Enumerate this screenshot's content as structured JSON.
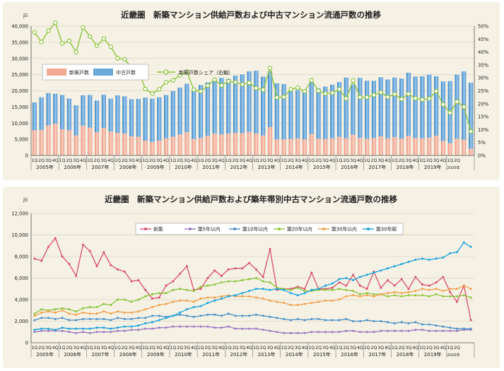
{
  "chart_data": [
    {
      "type": "bar",
      "title": "近畿圏　新築マンション供給戸数および中古マンション流通戸数の推移",
      "y_unit": "戸",
      "ylim": [
        0,
        40000
      ],
      "yticks": [
        "0",
        "5,000",
        "10,000",
        "15,000",
        "20,000",
        "25,000",
        "30,000",
        "35,000",
        "40,000"
      ],
      "y2lim": [
        0,
        50
      ],
      "y2ticks": [
        "0%",
        "5%",
        "10%",
        "15%",
        "20%",
        "25%",
        "30%",
        "35%",
        "40%",
        "45%",
        "50%"
      ],
      "quarter_labels": [
        "1Q",
        "2Q",
        "3Q",
        "4Q"
      ],
      "last_quarter_labels": [
        "1Q",
        "2Q"
      ],
      "years": [
        "2005年",
        "2006年",
        "2007年",
        "2008年",
        "2009年",
        "2010年",
        "2011年",
        "2012年",
        "2013年",
        "2014年",
        "2015年",
        "2016年",
        "2017年",
        "2018年",
        "2019年",
        "2020年"
      ],
      "legend": {
        "new": "新築戸数",
        "used": "中古戸数",
        "share": "新築戸数シェア（右軸）"
      },
      "legend_placement": "middle-left",
      "series": [
        {
          "name": "新築戸数",
          "values": [
            7800,
            7900,
            9300,
            9800,
            8100,
            7800,
            6200,
            9200,
            8600,
            7200,
            8500,
            7400,
            7000,
            6800,
            5900,
            5800,
            4600,
            4200,
            4600,
            5300,
            5800,
            6500,
            7200,
            5100,
            5400,
            6100,
            6800,
            6500,
            6800,
            7000,
            6900,
            7300,
            6800,
            6200,
            8800,
            5000,
            5000,
            5100,
            5300,
            5000,
            6600,
            5200,
            5100,
            5300,
            5800,
            5300,
            6400,
            5400,
            5200,
            5400,
            5900,
            5300,
            5700,
            5200,
            6100,
            5400,
            5300,
            5500,
            6100,
            4500,
            3800,
            5200,
            4900,
            2100
          ]
        },
        {
          "name": "中古戸数",
          "values": [
            8600,
            10100,
            10000,
            9300,
            10600,
            9800,
            9300,
            9400,
            10100,
            9800,
            10300,
            10200,
            11600,
            11500,
            11500,
            11700,
            13300,
            13400,
            13400,
            13400,
            14100,
            14500,
            15000,
            15000,
            16400,
            16500,
            16400,
            17500,
            16900,
            17700,
            18200,
            18700,
            19400,
            18200,
            17200,
            17300,
            17100,
            14800,
            14900,
            15200,
            16100,
            15600,
            16200,
            16600,
            16900,
            18800,
            15700,
            18600,
            17900,
            17700,
            18300,
            18200,
            18400,
            18600,
            19500,
            19000,
            19200,
            19500,
            18400,
            18400,
            19200,
            19800,
            21100,
            20400
          ]
        },
        {
          "name": "新築戸数シェア（右軸）",
          "values": [
            47.6,
            43.9,
            48.2,
            51.3,
            43.3,
            44.3,
            40.0,
            49.5,
            46.0,
            42.4,
            45.2,
            42.0,
            37.6,
            37.2,
            33.9,
            33.1,
            25.7,
            23.9,
            25.6,
            28.3,
            29.1,
            31.0,
            32.4,
            25.4,
            24.8,
            27.0,
            29.3,
            27.1,
            28.7,
            28.3,
            27.5,
            28.1,
            26.0,
            25.4,
            33.8,
            22.4,
            22.6,
            25.6,
            26.2,
            24.8,
            29.1,
            25.0,
            23.9,
            24.2,
            25.6,
            22.0,
            29.0,
            22.5,
            22.5,
            23.4,
            24.4,
            22.6,
            23.7,
            21.8,
            23.8,
            22.1,
            21.6,
            22.0,
            24.9,
            19.7,
            16.5,
            20.8,
            18.8,
            9.3
          ]
        }
      ]
    },
    {
      "type": "line",
      "title": "近畿圏　新築マンション供給戸数および築年帯別中古マンション流通戸数の推移",
      "y_unit": "戸",
      "ylim": [
        0,
        12000
      ],
      "yticks": [
        "0",
        "2,000",
        "4,000",
        "6,000",
        "8,000",
        "10,000",
        "12,000"
      ],
      "quarter_labels": [
        "1Q",
        "2Q",
        "3Q",
        "4Q"
      ],
      "last_quarter_labels": [
        "1Q",
        "2Q"
      ],
      "years": [
        "2005年",
        "2006年",
        "2007年",
        "2008年",
        "2009年",
        "2010年",
        "2011年",
        "2012年",
        "2013年",
        "2014年",
        "2015年",
        "2016年",
        "2017年",
        "2018年",
        "2019年",
        "2020年"
      ],
      "legend_placement": "top-center",
      "series": [
        {
          "name": "新築",
          "color": "#d9506c",
          "values": [
            7800,
            7600,
            8900,
            9700,
            8000,
            7300,
            6200,
            9100,
            8500,
            7100,
            8400,
            7200,
            6800,
            6600,
            5700,
            5800,
            4900,
            4100,
            4200,
            5300,
            5700,
            6400,
            7100,
            4900,
            5000,
            6000,
            6700,
            6200,
            6800,
            6900,
            6900,
            7400,
            6800,
            6100,
            8700,
            4900,
            5000,
            5000,
            5200,
            5000,
            6500,
            5000,
            5000,
            5100,
            5600,
            5300,
            6300,
            5300,
            5000,
            6600,
            5100,
            5800,
            5300,
            5900,
            5000,
            6100,
            5400,
            5300,
            5600,
            6100,
            4700,
            3800,
            5300,
            2100
          ]
        },
        {
          "name": "築5年以内",
          "color": "#9b78c2",
          "values": [
            1000,
            1100,
            1100,
            1100,
            1100,
            1000,
            900,
            1000,
            900,
            1000,
            1000,
            1000,
            1100,
            1100,
            1200,
            1200,
            1300,
            1300,
            1400,
            1400,
            1500,
            1500,
            1500,
            1500,
            1500,
            1500,
            1400,
            1400,
            1500,
            1300,
            1300,
            1300,
            1300,
            1200,
            1100,
            1000,
            900,
            900,
            900,
            900,
            1000,
            1000,
            1000,
            1000,
            1000,
            1100,
            1100,
            1000,
            1000,
            1000,
            1100,
            1100,
            1100,
            1100,
            1100,
            1200,
            1200,
            1100,
            1100,
            1100,
            1100,
            1100,
            1200,
            1200
          ]
        },
        {
          "name": "築10年以内",
          "color": "#4a8fc9",
          "values": [
            2100,
            2300,
            2300,
            2200,
            2300,
            2100,
            2100,
            2200,
            2200,
            2200,
            2200,
            2100,
            2300,
            2200,
            2200,
            2300,
            2300,
            2500,
            2500,
            2400,
            2500,
            2600,
            2500,
            2400,
            2500,
            2600,
            2600,
            2500,
            2700,
            2500,
            2500,
            2500,
            2600,
            2500,
            2400,
            2300,
            2200,
            2100,
            2200,
            2100,
            2200,
            2200,
            2100,
            2100,
            2100,
            2200,
            2000,
            2000,
            2100,
            2000,
            2000,
            1900,
            1800,
            1900,
            1800,
            1900,
            1700,
            1700,
            1600,
            1500,
            1400,
            1300,
            1300,
            1300
          ]
        },
        {
          "name": "築20年以内",
          "color": "#8dc43d",
          "values": [
            2700,
            3100,
            3000,
            3100,
            3200,
            3100,
            2900,
            3200,
            3300,
            3300,
            3600,
            3500,
            4000,
            4000,
            3800,
            4000,
            4300,
            4500,
            4600,
            4600,
            4900,
            5000,
            4900,
            4800,
            5200,
            5300,
            5400,
            5600,
            5700,
            5700,
            5800,
            5900,
            6000,
            5700,
            5600,
            5100,
            5000,
            4900,
            5100,
            4800,
            4800,
            4900,
            4900,
            4900,
            5000,
            4900,
            4800,
            4500,
            4600,
            4500,
            4500,
            4300,
            4400,
            4300,
            4400,
            4400,
            4400,
            4300,
            4500,
            4300,
            4300,
            4300,
            4400,
            4200
          ]
        },
        {
          "name": "築30年以内",
          "color": "#f0a04b",
          "values": [
            2500,
            2800,
            2900,
            2800,
            3000,
            2700,
            2600,
            2800,
            2700,
            2700,
            2900,
            2700,
            2900,
            2800,
            2800,
            2900,
            3100,
            3300,
            3500,
            3600,
            3800,
            3900,
            3900,
            3800,
            4100,
            4200,
            4200,
            4300,
            4400,
            4300,
            4300,
            4300,
            4200,
            4100,
            3900,
            3800,
            3700,
            3500,
            3500,
            3600,
            3700,
            3800,
            3900,
            3900,
            4000,
            4300,
            4400,
            4300,
            4400,
            4300,
            4500,
            4600,
            4700,
            4600,
            4700,
            4800,
            5000,
            4900,
            5000,
            4800,
            5000,
            5000,
            5300,
            5000
          ]
        },
        {
          "name": "築30年超",
          "color": "#1aa3dd",
          "values": [
            1200,
            1300,
            1300,
            1200,
            1400,
            1300,
            1300,
            1300,
            1300,
            1400,
            1400,
            1300,
            1400,
            1500,
            1500,
            1600,
            1800,
            1900,
            2100,
            2300,
            2500,
            2800,
            3100,
            3300,
            3400,
            3700,
            3900,
            4100,
            4300,
            4400,
            4600,
            4800,
            5000,
            5000,
            4900,
            5000,
            4900,
            4600,
            4400,
            4600,
            4900,
            5000,
            5300,
            5500,
            5900,
            6000,
            5800,
            6100,
            6300,
            6500,
            6700,
            6900,
            7100,
            7300,
            7500,
            7700,
            7800,
            7700,
            7800,
            7900,
            8300,
            8400,
            9300,
            8900
          ]
        }
      ]
    }
  ]
}
